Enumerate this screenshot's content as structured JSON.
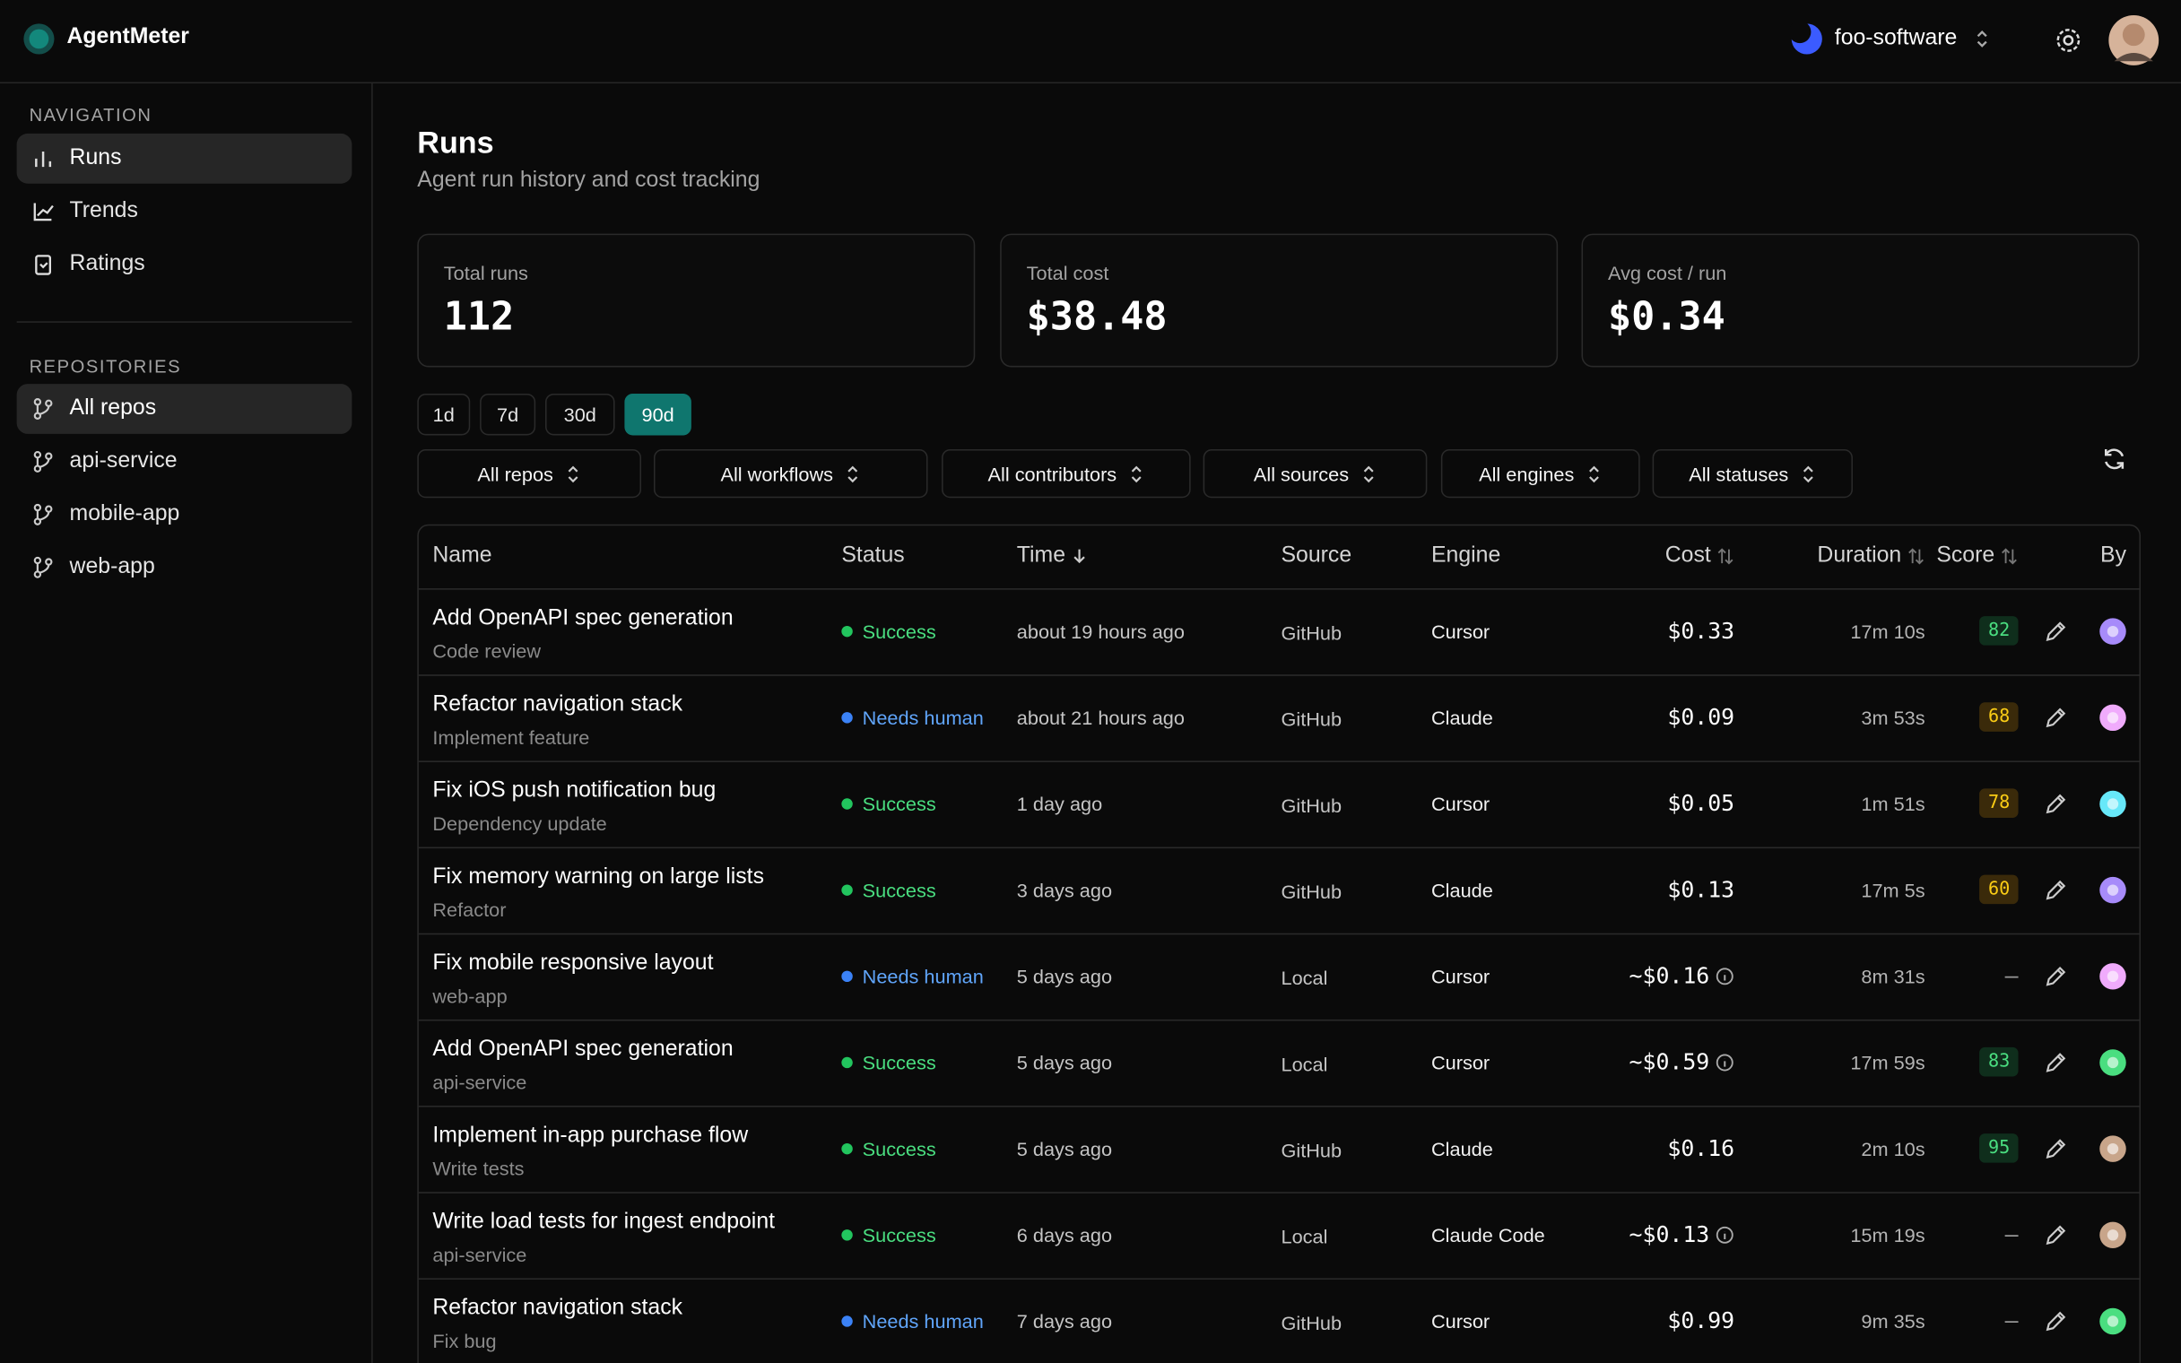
{
  "app": {
    "name": "AgentMeter",
    "org": "foo-software"
  },
  "sidebar": {
    "nav_heading": "NAVIGATION",
    "nav": [
      "Runs",
      "Trends",
      "Ratings"
    ],
    "active_nav_index": 0,
    "repo_heading": "REPOSITORIES",
    "repos": [
      "All repos",
      "api-service",
      "mobile-app",
      "web-app"
    ],
    "active_repo_index": 0
  },
  "page": {
    "title": "Runs",
    "subtitle": "Agent run history and cost tracking"
  },
  "stats": [
    {
      "label": "Total runs",
      "value": "112"
    },
    {
      "label": "Total cost",
      "value": "$38.48"
    },
    {
      "label": "Avg cost / run",
      "value": "$0.34"
    }
  ],
  "ranges": [
    "1d",
    "7d",
    "30d",
    "90d"
  ],
  "active_range_index": 3,
  "filters": [
    "All repos",
    "All workflows",
    "All contributors",
    "All sources",
    "All engines",
    "All statuses"
  ],
  "table": {
    "columns": [
      {
        "label": "Name"
      },
      {
        "label": "Status"
      },
      {
        "label": "Time",
        "sort": "desc"
      },
      {
        "label": "Source"
      },
      {
        "label": "Engine"
      },
      {
        "label": "Cost",
        "sort": "both"
      },
      {
        "label": "Duration",
        "sort": "both"
      },
      {
        "label": "Score",
        "sort": "both"
      },
      {
        "label": "By"
      }
    ],
    "rows": [
      {
        "name": "Add OpenAPI spec generation",
        "workflow": "Code review",
        "status": "Success",
        "time": "about 19 hours ago",
        "source": "GitHub",
        "engine": "Cursor",
        "cost": "$0.33",
        "duration": "17m 10s",
        "score": "82"
      },
      {
        "name": "Refactor navigation stack",
        "workflow": "Implement feature",
        "status": "Needs human",
        "time": "about 21 hours ago",
        "source": "GitHub",
        "engine": "Claude",
        "cost": "$0.09",
        "duration": "3m 53s",
        "score": "68"
      },
      {
        "name": "Fix iOS push notification bug",
        "workflow": "Dependency update",
        "status": "Success",
        "time": "1 day ago",
        "source": "GitHub",
        "engine": "Cursor",
        "cost": "$0.05",
        "duration": "1m 51s",
        "score": "78"
      },
      {
        "name": "Fix memory warning on large lists",
        "workflow": "Refactor",
        "status": "Success",
        "time": "3 days ago",
        "source": "GitHub",
        "engine": "Claude",
        "cost": "$0.13",
        "duration": "17m 5s",
        "score": "60"
      },
      {
        "name": "Fix mobile responsive layout",
        "workflow": "web-app",
        "status": "Needs human",
        "time": "5 days ago",
        "source": "Local",
        "engine": "Cursor",
        "cost": "~$0.16",
        "duration": "8m 31s",
        "score": "—"
      },
      {
        "name": "Add OpenAPI spec generation",
        "workflow": "api-service",
        "status": "Success",
        "time": "5 days ago",
        "source": "Local",
        "engine": "Cursor",
        "cost": "~$0.59",
        "duration": "17m 59s",
        "score": "83"
      },
      {
        "name": "Implement in-app purchase flow",
        "workflow": "Write tests",
        "status": "Success",
        "time": "5 days ago",
        "source": "GitHub",
        "engine": "Claude",
        "cost": "$0.16",
        "duration": "2m 10s",
        "score": "95"
      },
      {
        "name": "Write load tests for ingest endpoint",
        "workflow": "api-service",
        "status": "Success",
        "time": "6 days ago",
        "source": "Local",
        "engine": "Claude Code",
        "cost": "~$0.13",
        "duration": "15m 19s",
        "score": "—"
      },
      {
        "name": "Refactor navigation stack",
        "workflow": "Fix bug",
        "status": "Needs human",
        "time": "7 days ago",
        "source": "GitHub",
        "engine": "Cursor",
        "cost": "$0.99",
        "duration": "9m 35s",
        "score": "—"
      }
    ]
  }
}
